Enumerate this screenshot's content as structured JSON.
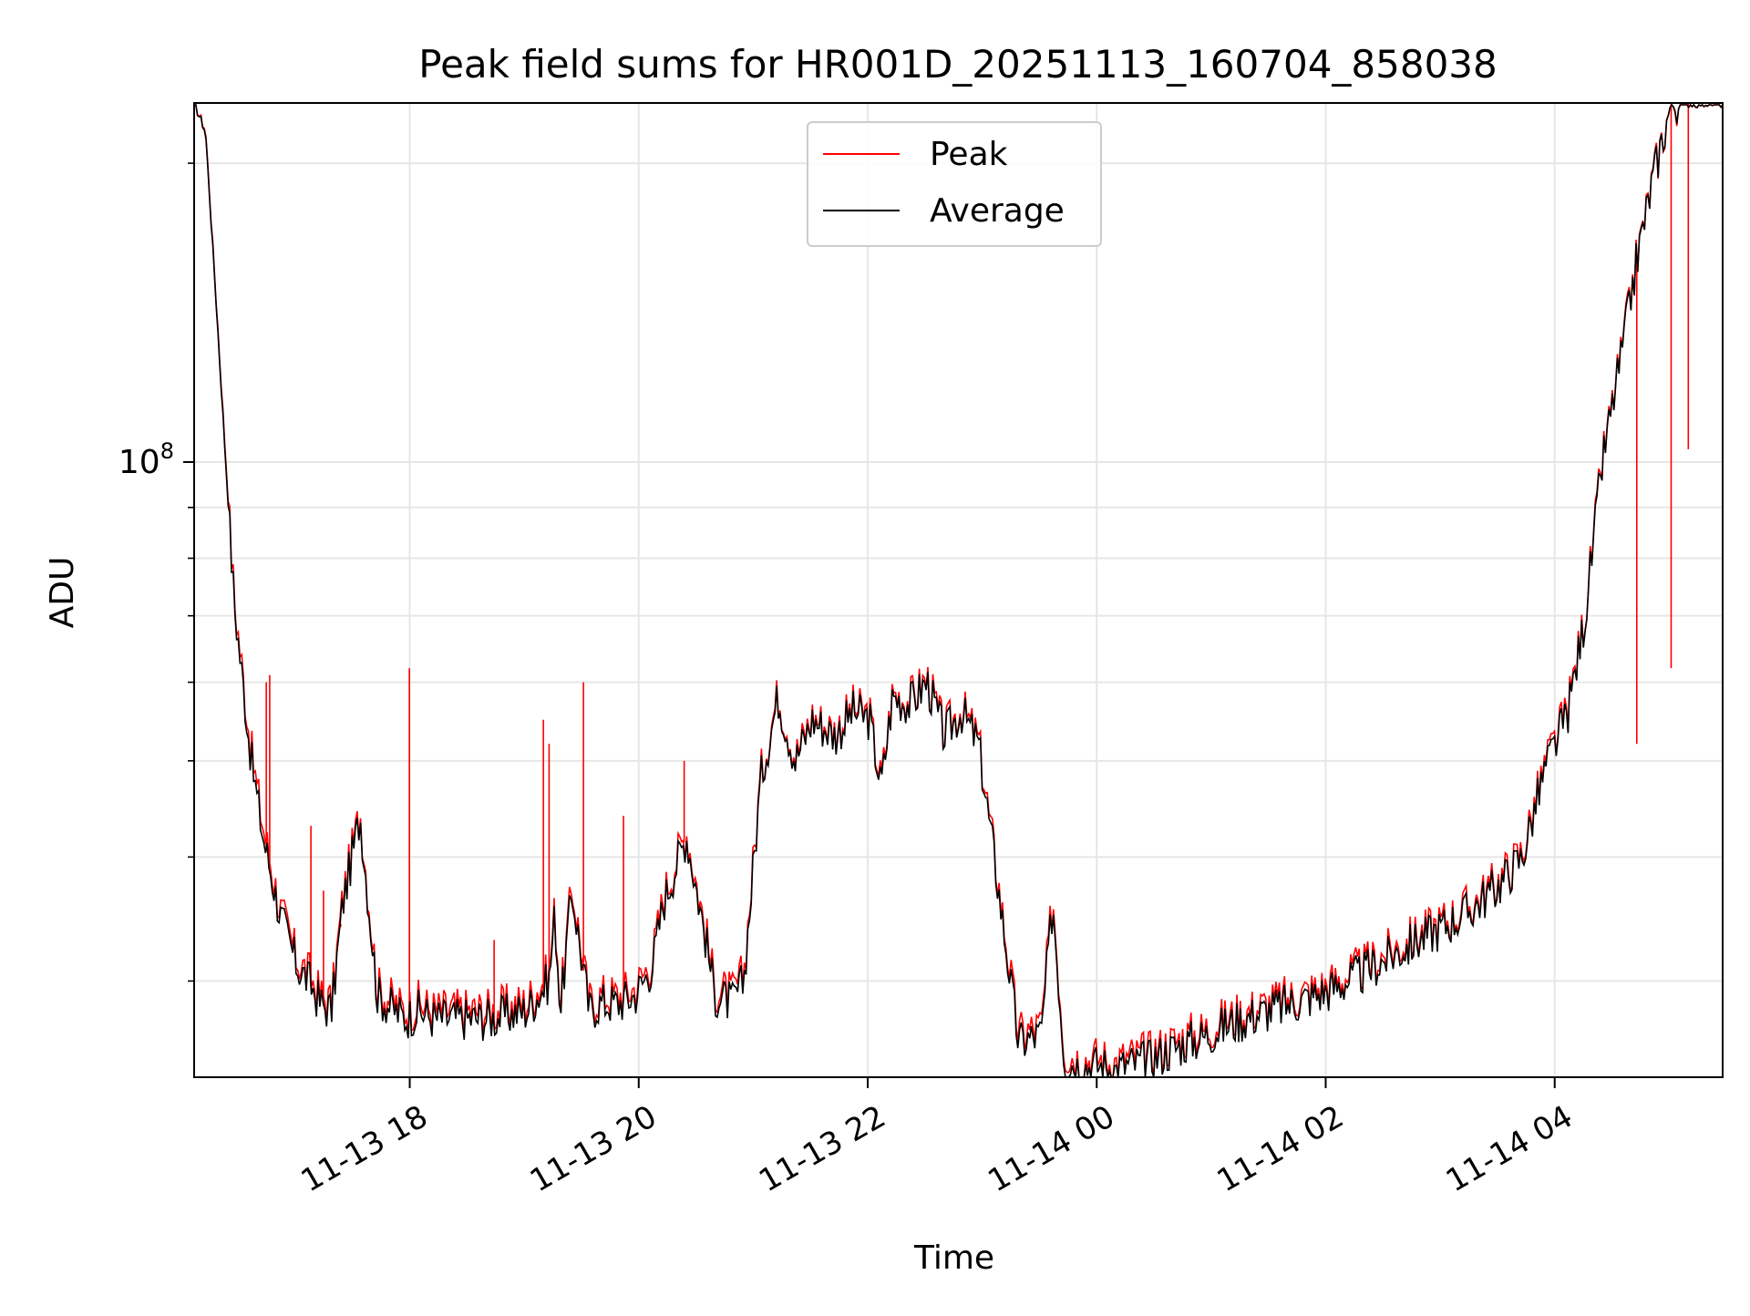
{
  "chart_data": {
    "type": "line",
    "title": "Peak field sums for HR001D_20251113_160704_858038",
    "xlabel": "Time",
    "ylabel": "ADU",
    "yscale": "log",
    "x_unit": "hours since 11-13 16:07",
    "xlim": [
      0.0,
      13.35
    ],
    "ylim": [
      24000000,
      230000000
    ],
    "y_major_ticks": [
      {
        "value": 100000000,
        "base": "10",
        "exp": "8"
      }
    ],
    "y_minor_ticks": [
      30000000,
      40000000,
      50000000,
      60000000,
      70000000,
      80000000,
      90000000,
      200000000
    ],
    "x_ticks": [
      {
        "value": 1.883,
        "label": "11-13 18"
      },
      {
        "value": 3.883,
        "label": "11-13 20"
      },
      {
        "value": 5.883,
        "label": "11-13 22"
      },
      {
        "value": 7.883,
        "label": "11-14 00"
      },
      {
        "value": 9.883,
        "label": "11-14 02"
      },
      {
        "value": 11.883,
        "label": "11-14 04"
      }
    ],
    "grid": true,
    "legend": {
      "position": "upper center",
      "entries": [
        "Peak",
        "Average"
      ]
    },
    "colors": {
      "Peak": "#ff0000",
      "Average": "#000000",
      "grid": "#e6e6e6"
    },
    "series": [
      {
        "name": "Average",
        "x": [
          0.0,
          0.1,
          0.2,
          0.35,
          0.5,
          0.6,
          0.75,
          0.9,
          1.0,
          1.1,
          1.2,
          1.3,
          1.45,
          1.6,
          1.75,
          1.85,
          1.95,
          2.1,
          2.3,
          2.6,
          2.9,
          3.1,
          3.15,
          3.2,
          3.3,
          3.45,
          3.55,
          3.7,
          3.85,
          4.0,
          4.1,
          4.3,
          4.45,
          4.55,
          4.7,
          4.8,
          4.95,
          5.1,
          5.25,
          5.4,
          5.6,
          5.75,
          5.9,
          6.0,
          6.1,
          6.25,
          6.4,
          6.55,
          6.7,
          6.85,
          7.0,
          7.2,
          7.4,
          7.5,
          7.6,
          7.75,
          7.85,
          7.95,
          8.05,
          8.15,
          8.25,
          8.35,
          8.45,
          8.6,
          8.8,
          9.0,
          9.3,
          9.6,
          9.9,
          10.2,
          10.5,
          10.8,
          11.1,
          11.4,
          11.6,
          11.8,
          12.0,
          12.15,
          12.3,
          12.5,
          12.6,
          12.75,
          12.9,
          13.0,
          13.1,
          13.2,
          13.3,
          13.35
        ],
        "values": [
          230000000,
          215000000,
          140000000,
          72000000,
          50000000,
          42000000,
          35000000,
          31000000,
          30000000,
          28500000,
          28000000,
          36000000,
          44000000,
          29000000,
          28000000,
          27500000,
          28000000,
          27500000,
          27500000,
          27500000,
          28000000,
          30000000,
          35000000,
          28000000,
          37000000,
          28000000,
          28500000,
          28500000,
          29000000,
          31000000,
          36000000,
          42000000,
          34000000,
          29000000,
          28500000,
          30000000,
          48000000,
          58000000,
          50000000,
          55000000,
          53000000,
          56000000,
          55000000,
          47000000,
          58000000,
          57000000,
          60000000,
          53000000,
          56000000,
          52000000,
          39000000,
          26000000,
          26500000,
          36000000,
          25000000,
          24600000,
          24700000,
          24600000,
          24400000,
          24700000,
          24800000,
          25000000,
          25300000,
          25800000,
          26300000,
          27000000,
          27800000,
          28500000,
          29300000,
          30500000,
          32000000,
          33500000,
          35000000,
          37500000,
          40000000,
          49000000,
          56000000,
          70000000,
          100000000,
          135000000,
          160000000,
          195000000,
          230000000,
          230000000,
          230000000,
          230000000,
          230000000,
          230000000
        ]
      },
      {
        "name": "Peak",
        "x": [
          0.0,
          0.1,
          0.2,
          0.35,
          0.5,
          0.6,
          0.75,
          0.9,
          1.0,
          1.1,
          1.2,
          1.3,
          1.45,
          1.6,
          1.75,
          1.85,
          1.95,
          2.1,
          2.3,
          2.6,
          2.9,
          3.1,
          3.15,
          3.2,
          3.3,
          3.45,
          3.55,
          3.7,
          3.85,
          4.0,
          4.1,
          4.3,
          4.45,
          4.55,
          4.7,
          4.8,
          4.95,
          5.1,
          5.25,
          5.4,
          5.6,
          5.75,
          5.9,
          6.0,
          6.1,
          6.25,
          6.4,
          6.55,
          6.7,
          6.85,
          7.0,
          7.2,
          7.4,
          7.5,
          7.6,
          7.75,
          7.85,
          7.95,
          8.05,
          8.15,
          8.25,
          8.35,
          8.45,
          8.6,
          8.8,
          9.0,
          9.3,
          9.6,
          9.9,
          10.2,
          10.5,
          10.8,
          11.1,
          11.4,
          11.6,
          11.8,
          12.0,
          12.15,
          12.3,
          12.5,
          12.6,
          12.75,
          12.9,
          13.0,
          13.1,
          13.2,
          13.3,
          13.35
        ],
        "values": [
          230000000,
          216000000,
          141000000,
          73000000,
          51000000,
          43000000,
          35500000,
          31500000,
          30500000,
          29000000,
          28500000,
          36500000,
          44500000,
          29500000,
          28500000,
          28000000,
          28500000,
          28000000,
          28000000,
          28000000,
          28500000,
          30500000,
          35500000,
          28500000,
          37500000,
          28500000,
          29000000,
          29000000,
          29500000,
          31500000,
          36500000,
          42500000,
          34500000,
          29500000,
          29000000,
          30500000,
          48500000,
          58500000,
          50500000,
          55500000,
          53500000,
          56500000,
          55500000,
          47500000,
          58500000,
          57500000,
          60500000,
          53500000,
          56500000,
          52500000,
          39500000,
          26500000,
          27000000,
          36500000,
          25500000,
          25000000,
          25100000,
          25000000,
          24800000,
          25100000,
          25200000,
          25400000,
          25700000,
          26200000,
          26700000,
          27400000,
          28200000,
          28900000,
          29700000,
          30900000,
          32400000,
          33900000,
          35400000,
          37900000,
          40500000,
          49500000,
          56500000,
          70500000,
          100500000,
          135500000,
          160500000,
          195500000,
          230000000,
          230000000,
          230000000,
          230000000,
          230000000,
          230000000
        ]
      }
    ],
    "peak_spikes": [
      {
        "x": 0.63,
        "value": 60000000
      },
      {
        "x": 0.66,
        "value": 61000000
      },
      {
        "x": 1.02,
        "value": 43000000
      },
      {
        "x": 1.13,
        "value": 37000000
      },
      {
        "x": 1.28,
        "value": 34000000
      },
      {
        "x": 1.88,
        "value": 62000000
      },
      {
        "x": 2.62,
        "value": 33000000
      },
      {
        "x": 3.05,
        "value": 55000000
      },
      {
        "x": 3.1,
        "value": 52000000
      },
      {
        "x": 3.4,
        "value": 60000000
      },
      {
        "x": 3.75,
        "value": 44000000
      },
      {
        "x": 4.28,
        "value": 50000000
      },
      {
        "x": 12.6,
        "value": 52000000
      },
      {
        "x": 12.9,
        "value": 62000000
      },
      {
        "x": 13.05,
        "value": 103000000
      }
    ]
  }
}
